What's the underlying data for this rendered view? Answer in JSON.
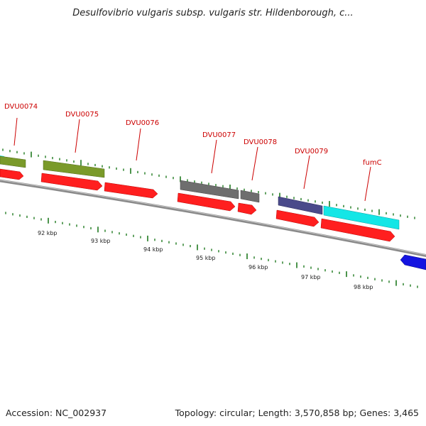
{
  "title": "Desulfovibrio vulgaris subsp. vulgaris str. Hildenborough, c...",
  "footer": {
    "accession": "Accession: NC_002937",
    "topology": "Topology: circular; Length: 3,570,858 bp; Genes: 3,465"
  },
  "colors": {
    "backbone": "#8a8a8a",
    "cds": "#ff1f1f",
    "label": "#cc0000",
    "tick": "#1f7a1f",
    "olive": "#7a9a2a",
    "gray": "#6e6e6e",
    "purple": "#4a4a8a",
    "cyan": "#14e6e6",
    "blue": "#1414e0"
  },
  "genes": [
    {
      "label": "DVU0074"
    },
    {
      "label": "DVU0075"
    },
    {
      "label": "DVU0076"
    },
    {
      "label": "DVU0077"
    },
    {
      "label": "DVU0078"
    },
    {
      "label": "DVU0079"
    },
    {
      "label": "fumC"
    }
  ],
  "scale": [
    {
      "label": "92 kbp"
    },
    {
      "label": "93 kbp"
    },
    {
      "label": "94 kbp"
    },
    {
      "label": "95 kbp"
    },
    {
      "label": "96 kbp"
    },
    {
      "label": "97 kbp"
    },
    {
      "label": "98 kbp"
    }
  ]
}
